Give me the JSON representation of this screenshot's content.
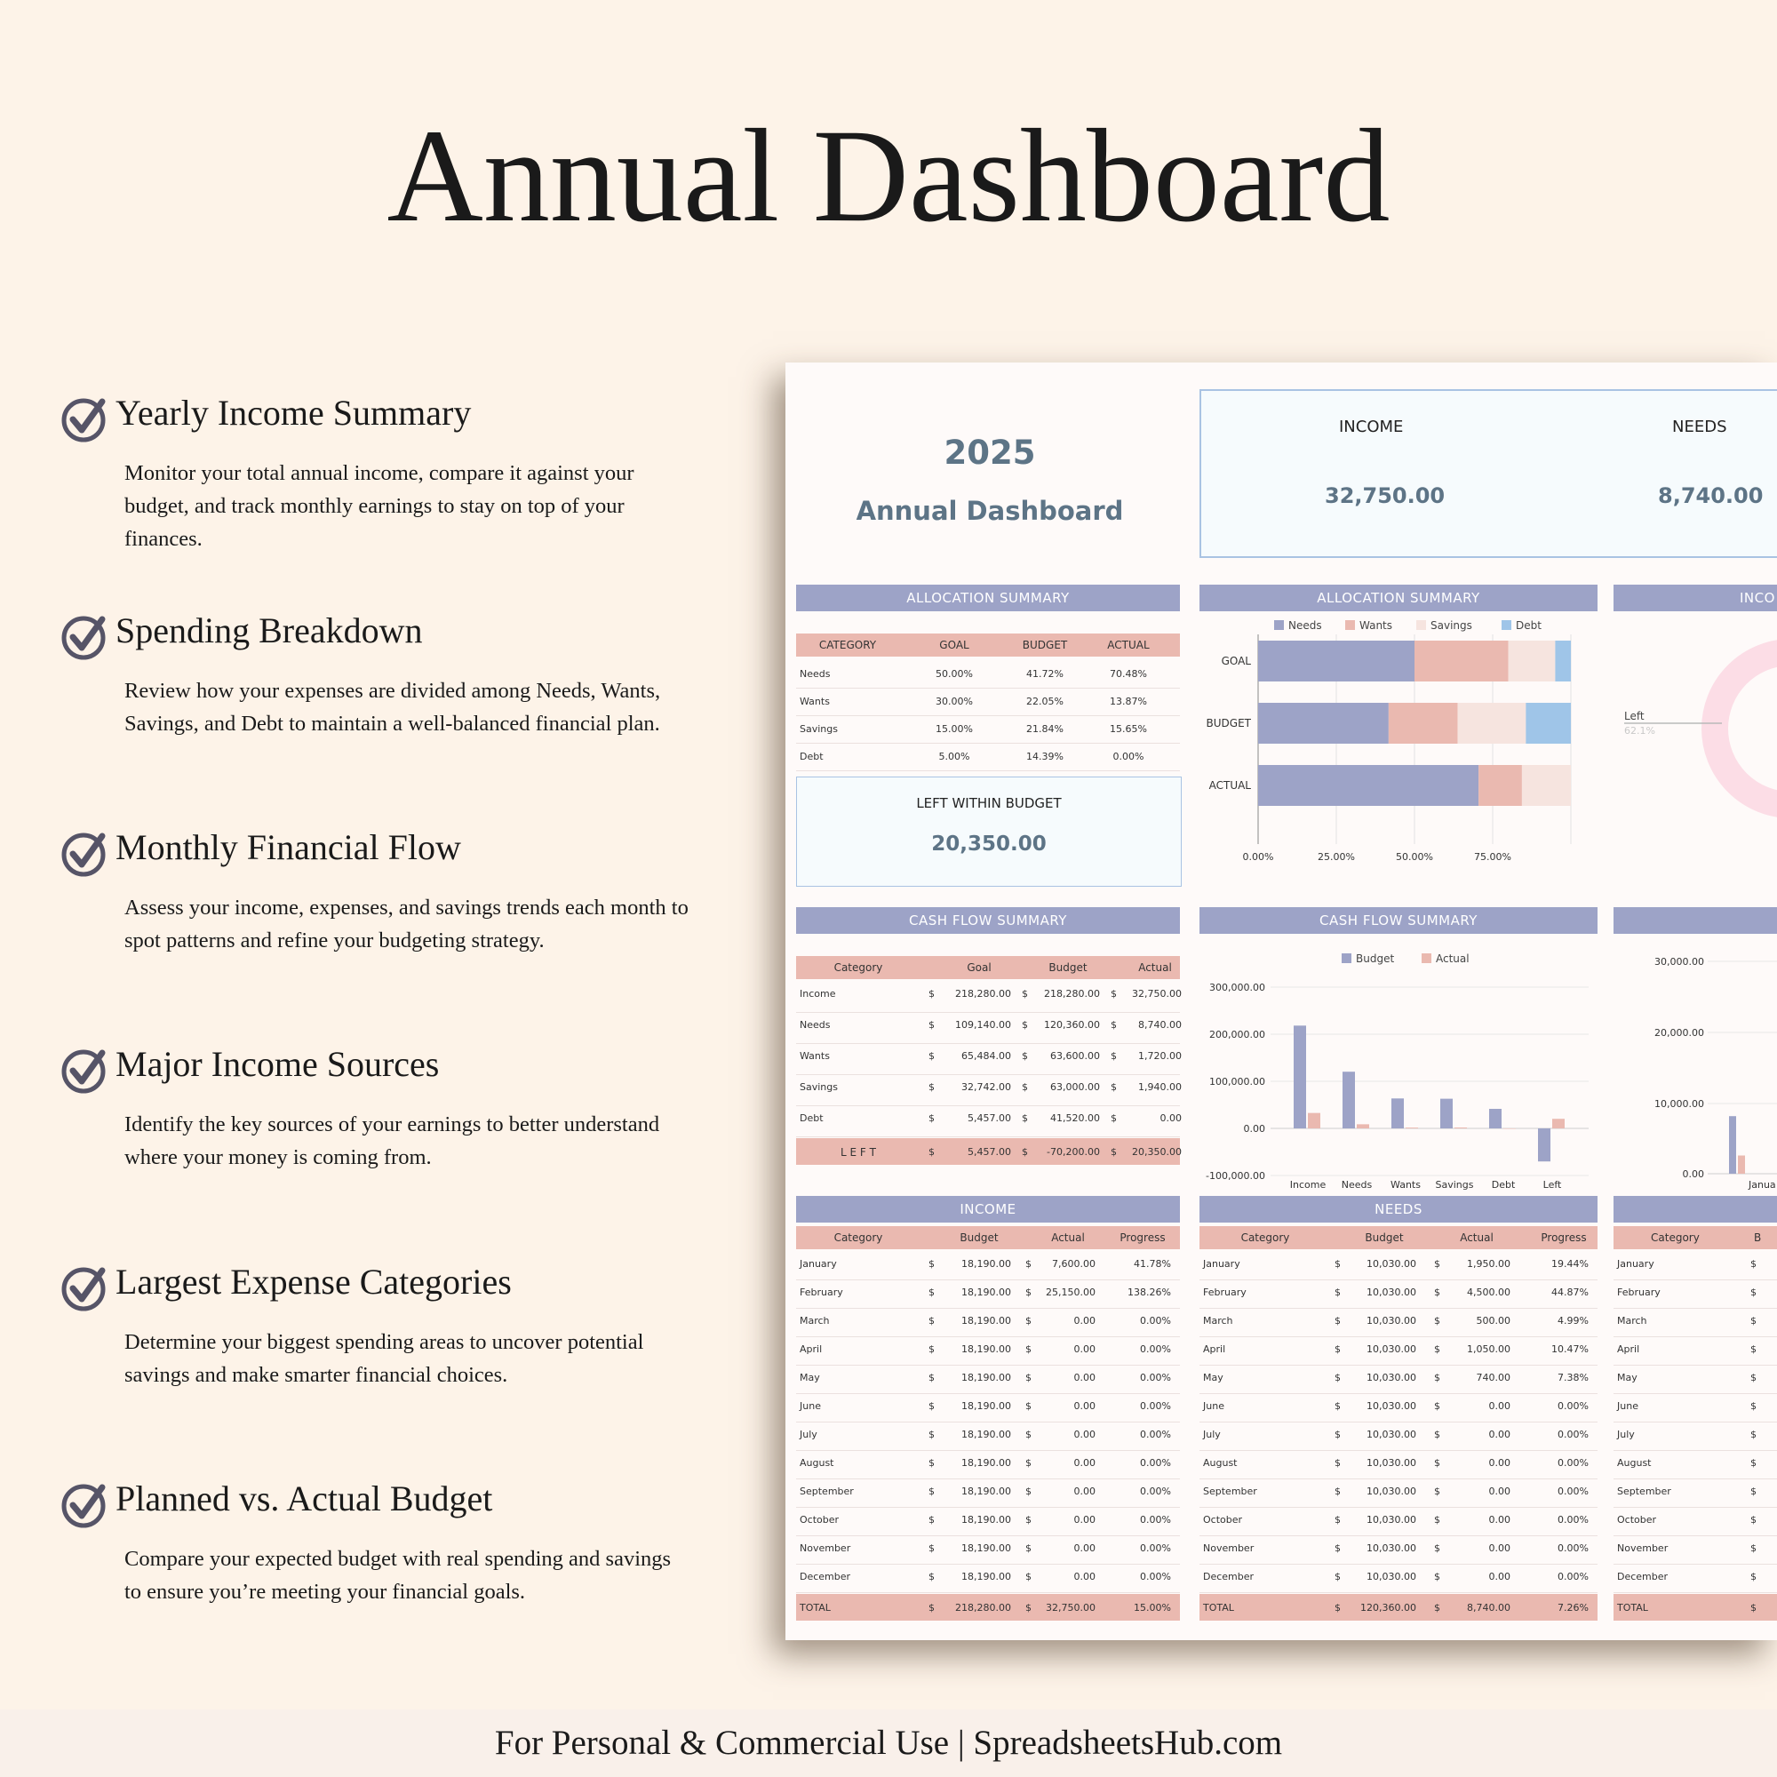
{
  "page": {
    "title": "Annual Dashboard",
    "footer": "For Personal & Commercial Use  |  SpreadsheetsHub.com"
  },
  "features": [
    {
      "icon": "check-circle-icon",
      "title": "Yearly Income Summary",
      "description": "Monitor your total annual income, compare it against your budget, and track monthly earnings to stay on top of your finances."
    },
    {
      "icon": "check-circle-icon",
      "title": "Spending Breakdown",
      "description": "Review how your expenses are divided among Needs, Wants, Savings, and Debt to maintain a well-balanced financial plan."
    },
    {
      "icon": "check-circle-icon",
      "title": "Monthly Financial Flow",
      "description": "Assess your income, expenses, and savings trends each month to spot patterns and refine your budgeting strategy."
    },
    {
      "icon": "check-circle-icon",
      "title": "Major Income Sources",
      "description": "Identify the key sources of your earnings to better understand where your money is coming from."
    },
    {
      "icon": "check-circle-icon",
      "title": "Largest Expense Categories",
      "description": "Determine your biggest spending areas to uncover potential savings and make smarter financial choices."
    },
    {
      "icon": "check-circle-icon",
      "title": "Planned vs. Actual Budget",
      "description": "Compare your expected budget with real spending and savings to ensure you’re meeting your financial goals."
    }
  ],
  "sheet": {
    "year": "2025",
    "subtitle": "Annual Dashboard",
    "kpis": [
      {
        "label": "INCOME",
        "value": "32,750.00"
      },
      {
        "label": "NEEDS",
        "value": "8,740.00"
      }
    ],
    "allocation_table": {
      "banner": "ALLOCATION  SUMMARY",
      "headers": [
        "CATEGORY",
        "GOAL",
        "BUDGET",
        "ACTUAL"
      ],
      "rows": [
        [
          "Needs",
          "50.00%",
          "41.72%",
          "70.48%"
        ],
        [
          "Wants",
          "30.00%",
          "22.05%",
          "13.87%"
        ],
        [
          "Savings",
          "15.00%",
          "21.84%",
          "15.65%"
        ],
        [
          "Debt",
          "5.00%",
          "14.39%",
          "0.00%"
        ]
      ]
    },
    "left_within_budget": {
      "label": "LEFT WITHIN BUDGET",
      "value": "20,350.00"
    },
    "cashflow_table": {
      "banner": "CASH FLOW SUMMARY",
      "headers": [
        "Category",
        "Goal",
        "Budget",
        "Actual"
      ],
      "currency": "$",
      "rows": [
        [
          "Income",
          "218,280.00",
          "218,280.00",
          "32,750.00"
        ],
        [
          "Needs",
          "109,140.00",
          "120,360.00",
          "8,740.00"
        ],
        [
          "Wants",
          "65,484.00",
          "63,600.00",
          "1,720.00"
        ],
        [
          "Savings",
          "32,742.00",
          "63,000.00",
          "1,940.00"
        ],
        [
          "Debt",
          "5,457.00",
          "41,520.00",
          "0.00"
        ]
      ],
      "total": [
        "L E F T",
        "5,457.00",
        "-70,200.00",
        "20,350.00"
      ]
    },
    "income_table": {
      "banner": "INCOME",
      "headers": [
        "Category",
        "Budget",
        "Actual",
        "Progress"
      ],
      "currency": "$",
      "rows": [
        [
          "January",
          "18,190.00",
          "7,600.00",
          "41.78%"
        ],
        [
          "February",
          "18,190.00",
          "25,150.00",
          "138.26%"
        ],
        [
          "March",
          "18,190.00",
          "0.00",
          "0.00%"
        ],
        [
          "April",
          "18,190.00",
          "0.00",
          "0.00%"
        ],
        [
          "May",
          "18,190.00",
          "0.00",
          "0.00%"
        ],
        [
          "June",
          "18,190.00",
          "0.00",
          "0.00%"
        ],
        [
          "July",
          "18,190.00",
          "0.00",
          "0.00%"
        ],
        [
          "August",
          "18,190.00",
          "0.00",
          "0.00%"
        ],
        [
          "September",
          "18,190.00",
          "0.00",
          "0.00%"
        ],
        [
          "October",
          "18,190.00",
          "0.00",
          "0.00%"
        ],
        [
          "November",
          "18,190.00",
          "0.00",
          "0.00%"
        ],
        [
          "December",
          "18,190.00",
          "0.00",
          "0.00%"
        ]
      ],
      "total": [
        "TOTAL",
        "218,280.00",
        "32,750.00",
        "15.00%"
      ]
    },
    "needs_table": {
      "banner": "NEEDS",
      "headers": [
        "Category",
        "Budget",
        "Actual",
        "Progress"
      ],
      "currency": "$",
      "rows": [
        [
          "January",
          "10,030.00",
          "1,950.00",
          "19.44%"
        ],
        [
          "February",
          "10,030.00",
          "4,500.00",
          "44.87%"
        ],
        [
          "March",
          "10,030.00",
          "500.00",
          "4.99%"
        ],
        [
          "April",
          "10,030.00",
          "1,050.00",
          "10.47%"
        ],
        [
          "May",
          "10,030.00",
          "740.00",
          "7.38%"
        ],
        [
          "June",
          "10,030.00",
          "0.00",
          "0.00%"
        ],
        [
          "July",
          "10,030.00",
          "0.00",
          "0.00%"
        ],
        [
          "August",
          "10,030.00",
          "0.00",
          "0.00%"
        ],
        [
          "September",
          "10,030.00",
          "0.00",
          "0.00%"
        ],
        [
          "October",
          "10,030.00",
          "0.00",
          "0.00%"
        ],
        [
          "November",
          "10,030.00",
          "0.00",
          "0.00%"
        ],
        [
          "December",
          "10,030.00",
          "0.00",
          "0.00%"
        ]
      ],
      "total": [
        "TOTAL",
        "120,360.00",
        "8,740.00",
        "7.26%"
      ]
    },
    "partial_table": {
      "banner": "INCO",
      "headers": [
        "Category",
        "B"
      ],
      "currency": "$",
      "rows": [
        "January",
        "February",
        "March",
        "April",
        "May",
        "June",
        "July",
        "August",
        "September",
        "October",
        "November",
        "December"
      ],
      "total": "TOTAL"
    },
    "partial_donut": {
      "banner": "INCO",
      "label": "Left",
      "value_label": "62.1%"
    },
    "partial_bar_chart": {
      "yticks": [
        "30,000.00",
        "20,000.00",
        "10,000.00",
        "0.00"
      ],
      "xlabel": "Janua"
    },
    "colors": {
      "needs": "#9da3c7",
      "wants": "#eab9b0",
      "savings": "#f6e4df",
      "debt": "#9fc5e8",
      "banner": "#9da3c7",
      "header": "#eab9b0"
    }
  },
  "chart_data": [
    {
      "type": "bar",
      "orientation": "horizontal-stacked",
      "title": "ALLOCATION  SUMMARY",
      "categories": [
        "GOAL",
        "BUDGET",
        "ACTUAL"
      ],
      "series": [
        {
          "name": "Needs",
          "values": [
            50.0,
            41.72,
            70.48
          ]
        },
        {
          "name": "Wants",
          "values": [
            30.0,
            22.05,
            13.87
          ]
        },
        {
          "name": "Savings",
          "values": [
            15.0,
            21.84,
            15.65
          ]
        },
        {
          "name": "Debt",
          "values": [
            5.0,
            14.39,
            0.0
          ]
        }
      ],
      "xticks": [
        "0.00%",
        "25.00%",
        "50.00%",
        "75.00%"
      ],
      "xlim": [
        0,
        100
      ],
      "legend": "top"
    },
    {
      "type": "bar",
      "title": "CASH FLOW SUMMARY",
      "categories": [
        "Income",
        "Needs",
        "Wants",
        "Savings",
        "Debt",
        "Left"
      ],
      "series": [
        {
          "name": "Budget",
          "values": [
            218280,
            120360,
            63600,
            63000,
            41520,
            -70200
          ]
        },
        {
          "name": "Actual",
          "values": [
            32750,
            8740,
            1720,
            1940,
            0,
            20350
          ]
        }
      ],
      "yticks": [
        "300,000.00",
        "200,000.00",
        "100,000.00",
        "0.00",
        "-100,000.00"
      ],
      "ylim": [
        -100000,
        300000
      ],
      "legend": "top"
    }
  ]
}
